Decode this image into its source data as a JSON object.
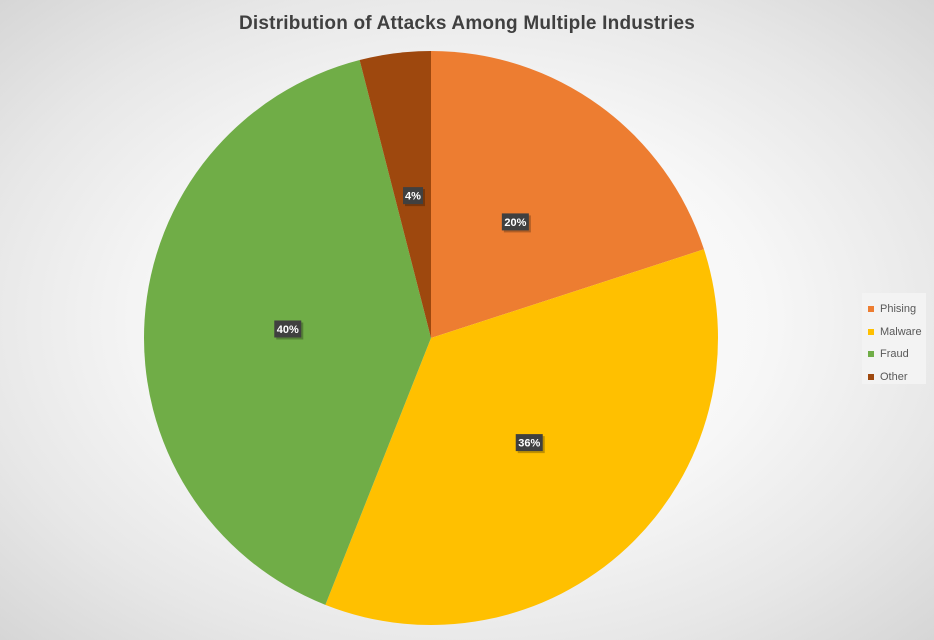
{
  "chart_data": {
    "type": "pie",
    "title": "Distribution  of Attacks Among Multiple Industries",
    "categories": [
      "Phising",
      "Malware",
      "Fraud",
      "Other"
    ],
    "values": [
      20,
      36,
      40,
      4
    ],
    "value_labels": [
      "20%",
      "36%",
      "40%",
      "4%"
    ],
    "colors": [
      "#ED7D31",
      "#FFC000",
      "#70AD47",
      "#9E480E"
    ],
    "start_angle_deg": 0,
    "direction": "clockwise",
    "legend_position": "right"
  }
}
